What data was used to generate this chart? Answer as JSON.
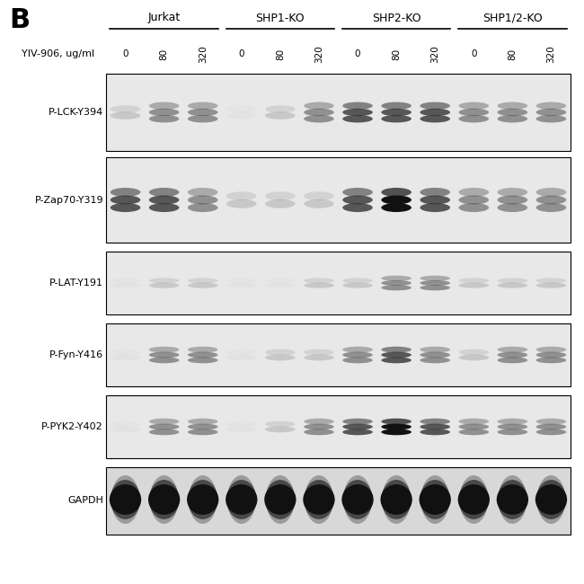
{
  "panel_label": "B",
  "cell_lines": [
    "Jurkat",
    "SHP1-KO",
    "SHP2-KO",
    "SHP1/2-KO"
  ],
  "doses": [
    "0",
    "80",
    "320"
  ],
  "dose_label": "YIV-906, ug/ml",
  "row_labels": [
    "P-LCK-Y394",
    "P-Zap70-Y319",
    "P-LAT-Y191",
    "P-Fyn-Y416",
    "P-PYK2-Y402",
    "GAPDH"
  ],
  "bg_color": "#ffffff",
  "panel_bg": "#f0f0f0",
  "band_color_dark": "#1a1a1a",
  "band_color_medium": "#555555",
  "band_color_light": "#aaaaaa",
  "band_color_very_light": "#cccccc",
  "n_lanes": 12,
  "n_rows": 6
}
